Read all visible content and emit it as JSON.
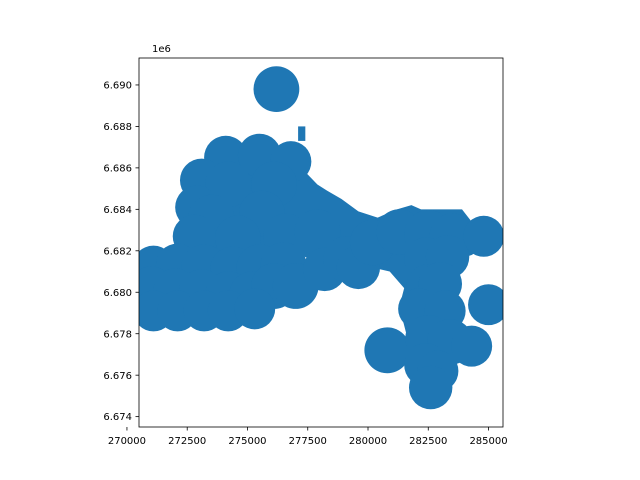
{
  "figure": {
    "offset_label": "1e6"
  },
  "chart_data": {
    "type": "map",
    "title": "",
    "xlabel": "",
    "ylabel": "",
    "xlim": [
      270500,
      285600
    ],
    "ylim": [
      6673500,
      6691300
    ],
    "y_offset": "1e6",
    "grid": false,
    "legend": "none",
    "fill_color": "#1f77b4",
    "xticks": [
      {
        "value": 270000,
        "label": "270000"
      },
      {
        "value": 272500,
        "label": "272500"
      },
      {
        "value": 275000,
        "label": "275000"
      },
      {
        "value": 277500,
        "label": "277500"
      },
      {
        "value": 280000,
        "label": "280000"
      },
      {
        "value": 282500,
        "label": "282500"
      },
      {
        "value": 285000,
        "label": "285000"
      }
    ],
    "yticks": [
      {
        "value": 6674000,
        "label": "6.674"
      },
      {
        "value": 6676000,
        "label": "6.676"
      },
      {
        "value": 6678000,
        "label": "6.678"
      },
      {
        "value": 6680000,
        "label": "6.680"
      },
      {
        "value": 6682000,
        "label": "6.682"
      },
      {
        "value": 6684000,
        "label": "6.684"
      },
      {
        "value": 6686000,
        "label": "6.686"
      },
      {
        "value": 6688000,
        "label": "6.688"
      },
      {
        "value": 6690000,
        "label": "6.690"
      }
    ],
    "polygons": [
      [
        [
          272500,
          6680200
        ],
        [
          272600,
          6685200
        ],
        [
          273800,
          6686800
        ],
        [
          276700,
          6687000
        ],
        [
          277200,
          6686500
        ],
        [
          277400,
          6685800
        ],
        [
          277900,
          6685200
        ],
        [
          278300,
          6684900
        ],
        [
          278900,
          6684500
        ],
        [
          279600,
          6683900
        ],
        [
          280400,
          6683600
        ],
        [
          281200,
          6684000
        ],
        [
          281800,
          6684200
        ],
        [
          282200,
          6684000
        ],
        [
          283900,
          6684000
        ],
        [
          284300,
          6683400
        ],
        [
          285000,
          6683000
        ],
        [
          285000,
          6682300
        ],
        [
          284300,
          6681800
        ],
        [
          283500,
          6681500
        ],
        [
          283300,
          6680800
        ],
        [
          282800,
          6680200
        ],
        [
          283100,
          6679200
        ],
        [
          283800,
          6678300
        ],
        [
          284300,
          6677400
        ],
        [
          283700,
          6676800
        ],
        [
          283400,
          6676100
        ],
        [
          282600,
          6675700
        ],
        [
          281800,
          6675800
        ],
        [
          281700,
          6677500
        ],
        [
          281300,
          6679300
        ],
        [
          281500,
          6680200
        ],
        [
          280900,
          6681000
        ],
        [
          279400,
          6681400
        ],
        [
          278000,
          6681400
        ],
        [
          277000,
          6681900
        ],
        [
          276600,
          6681300
        ],
        [
          276400,
          6680200
        ],
        [
          275600,
          6679700
        ],
        [
          275000,
          6679500
        ],
        [
          272800,
          6679700
        ]
      ],
      [
        [
          277100,
          6688000
        ],
        [
          277400,
          6688000
        ],
        [
          277400,
          6687300
        ],
        [
          277100,
          6687300
        ]
      ],
      [
        [
          280600,
          6683500
        ],
        [
          281000,
          6683500
        ],
        [
          281000,
          6682800
        ],
        [
          280600,
          6682800
        ]
      ]
    ],
    "circles": [
      [
        276200,
        6689800,
        950
      ],
      [
        274100,
        6686500,
        900
      ],
      [
        275500,
        6686600,
        900
      ],
      [
        276800,
        6686300,
        850
      ],
      [
        273100,
        6685400,
        900
      ],
      [
        274200,
        6685200,
        950
      ],
      [
        276100,
        6685200,
        950
      ],
      [
        272900,
        6684100,
        900
      ],
      [
        273500,
        6683600,
        950
      ],
      [
        275600,
        6683800,
        950
      ],
      [
        272800,
        6682700,
        900
      ],
      [
        274600,
        6682600,
        950
      ],
      [
        276600,
        6682700,
        950
      ],
      [
        277900,
        6682900,
        950
      ],
      [
        271100,
        6681200,
        900
      ],
      [
        272100,
        6681300,
        900
      ],
      [
        273200,
        6681200,
        950
      ],
      [
        274400,
        6681100,
        950
      ],
      [
        275500,
        6681200,
        950
      ],
      [
        276500,
        6681300,
        950
      ],
      [
        271000,
        6680200,
        900
      ],
      [
        272000,
        6680100,
        900
      ],
      [
        273100,
        6680000,
        950
      ],
      [
        274200,
        6679900,
        950
      ],
      [
        275200,
        6679900,
        950
      ],
      [
        276100,
        6680300,
        950
      ],
      [
        277000,
        6680300,
        950
      ],
      [
        271100,
        6679100,
        850
      ],
      [
        272100,
        6679100,
        850
      ],
      [
        273200,
        6679100,
        850
      ],
      [
        274200,
        6679100,
        850
      ],
      [
        275300,
        6679200,
        850
      ],
      [
        278200,
        6681100,
        900
      ],
      [
        279100,
        6681600,
        950
      ],
      [
        279600,
        6681200,
        900
      ],
      [
        280200,
        6682400,
        950
      ],
      [
        281300,
        6682900,
        950
      ],
      [
        282500,
        6682800,
        1000
      ],
      [
        283500,
        6682700,
        950
      ],
      [
        284800,
        6682700,
        850
      ],
      [
        282400,
        6681600,
        900
      ],
      [
        283300,
        6681700,
        900
      ],
      [
        282500,
        6680300,
        900
      ],
      [
        283000,
        6680400,
        900
      ],
      [
        282100,
        6679200,
        850
      ],
      [
        283200,
        6679100,
        850
      ],
      [
        285000,
        6679400,
        850
      ],
      [
        280800,
        6677200,
        950
      ],
      [
        282500,
        6677800,
        950
      ],
      [
        283400,
        6677600,
        950
      ],
      [
        284300,
        6677400,
        850
      ],
      [
        282400,
        6676500,
        900
      ],
      [
        282900,
        6676200,
        850
      ],
      [
        282600,
        6675400,
        900
      ]
    ]
  }
}
